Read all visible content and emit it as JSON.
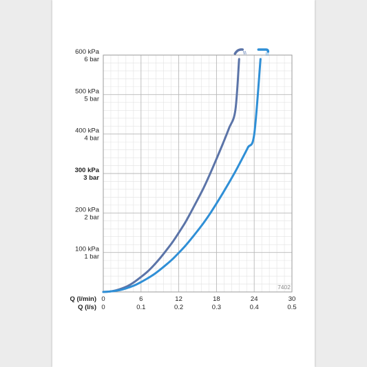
{
  "chart_data": {
    "type": "line",
    "code": "7402",
    "y_ticks": [
      {
        "kpa": "600 kPa",
        "bar": "6 bar",
        "value": 600,
        "bold": false
      },
      {
        "kpa": "500 kPa",
        "bar": "5 bar",
        "value": 500,
        "bold": false
      },
      {
        "kpa": "400 kPa",
        "bar": "4 bar",
        "value": 400,
        "bold": false
      },
      {
        "kpa": "300 kPa",
        "bar": "3 bar",
        "value": 300,
        "bold": true
      },
      {
        "kpa": "200 kPa",
        "bar": "2 bar",
        "value": 200,
        "bold": false
      },
      {
        "kpa": "100 kPa",
        "bar": "1 bar",
        "value": 100,
        "bold": false
      }
    ],
    "x_axis_labels": [
      "Q (l/min)",
      "Q (l/s)"
    ],
    "x_ticks_lmin": [
      "0",
      "6",
      "12",
      "18",
      "24",
      "30"
    ],
    "x_ticks_ls": [
      "0",
      "0.1",
      "0.2",
      "0.3",
      "0.4",
      "0.5"
    ],
    "xlim": [
      0,
      30
    ],
    "ylim": [
      0,
      600
    ],
    "grid": true,
    "series": [
      {
        "color": "#5b74a8",
        "icon": "single-hand-shower-icon",
        "x": [
          0,
          1,
          2,
          3,
          4,
          5,
          6,
          7,
          8,
          9,
          10,
          11,
          12,
          13,
          14,
          15,
          16,
          17,
          18,
          19,
          20,
          21,
          21.6
        ],
        "y": [
          0,
          1,
          4,
          9,
          16,
          26,
          38,
          51,
          67,
          85,
          105,
          126,
          150,
          175,
          204,
          234,
          265,
          300,
          337,
          375,
          415,
          460,
          590
        ]
      },
      {
        "color": "#2f8fd6",
        "icon": "triple-spray-shower-icon",
        "x": [
          0,
          1,
          2,
          3,
          4,
          5,
          6,
          7,
          8,
          9,
          10,
          11,
          12,
          13,
          14,
          15,
          16,
          17,
          18,
          19,
          20,
          21,
          22,
          23,
          24,
          25
        ],
        "y": [
          0,
          1,
          3,
          6,
          11,
          17,
          25,
          34,
          44,
          56,
          69,
          83,
          99,
          116,
          135,
          155,
          176,
          199,
          224,
          250,
          277,
          305,
          335,
          366,
          399,
          590
        ]
      }
    ]
  }
}
